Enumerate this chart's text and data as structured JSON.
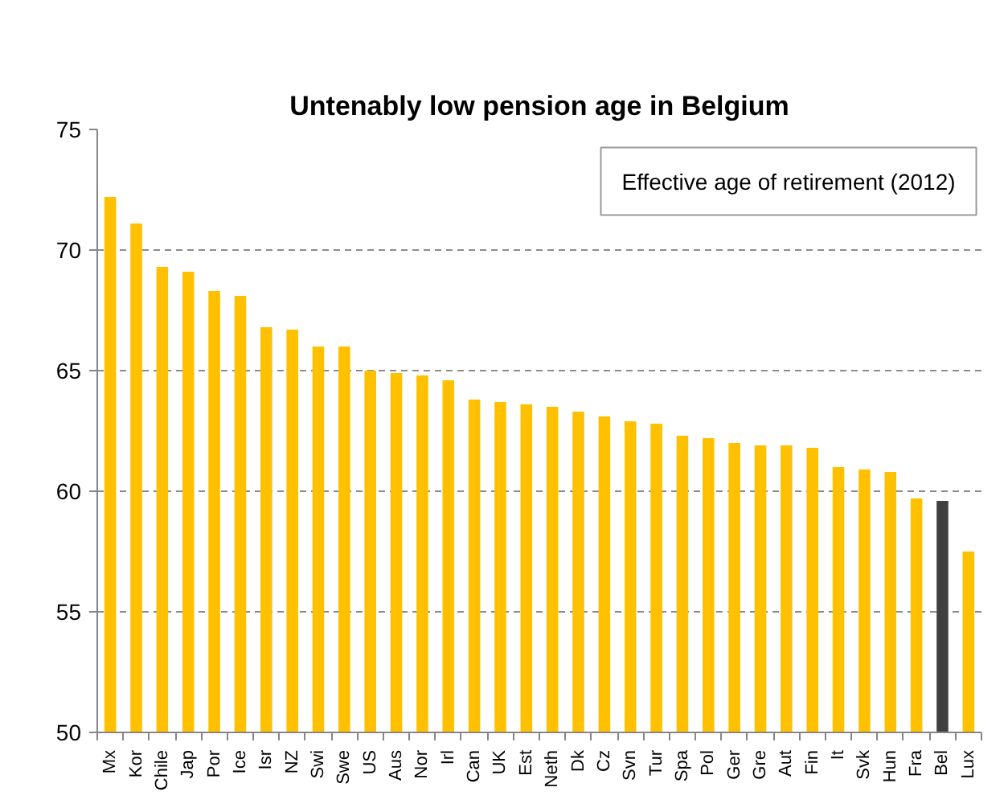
{
  "chart_data": {
    "type": "bar",
    "title": "Untenably low pension age in Belgium",
    "categories": [
      "Mx",
      "Kor",
      "Chile",
      "Jap",
      "Por",
      "Ice",
      "Isr",
      "NZ",
      "Swi",
      "Swe",
      "US",
      "Aus",
      "Nor",
      "Irl",
      "Can",
      "UK",
      "Est",
      "Neth",
      "Dk",
      "Cz",
      "Svn",
      "Tur",
      "Spa",
      "Pol",
      "Ger",
      "Gre",
      "Aut",
      "Fin",
      "It",
      "Svk",
      "Hun",
      "Fra",
      "Bel",
      "Lux"
    ],
    "values": [
      72.2,
      71.1,
      69.3,
      69.1,
      68.3,
      68.1,
      66.8,
      66.7,
      66.0,
      66.0,
      65.0,
      64.9,
      64.8,
      64.6,
      63.8,
      63.7,
      63.6,
      63.5,
      63.3,
      63.1,
      62.9,
      62.8,
      62.3,
      62.2,
      62.0,
      61.9,
      61.9,
      61.8,
      61.0,
      60.9,
      60.8,
      59.7,
      59.6,
      57.5
    ],
    "colors": [
      "#ffc000",
      "#ffc000",
      "#ffc000",
      "#ffc000",
      "#ffc000",
      "#ffc000",
      "#ffc000",
      "#ffc000",
      "#ffc000",
      "#ffc000",
      "#ffc000",
      "#ffc000",
      "#ffc000",
      "#ffc000",
      "#ffc000",
      "#ffc000",
      "#ffc000",
      "#ffc000",
      "#ffc000",
      "#ffc000",
      "#ffc000",
      "#ffc000",
      "#ffc000",
      "#ffc000",
      "#ffc000",
      "#ffc000",
      "#ffc000",
      "#ffc000",
      "#ffc000",
      "#ffc000",
      "#ffc000",
      "#ffc000",
      "#404040",
      "#ffc000"
    ],
    "ylim": [
      50,
      75
    ],
    "yticks": [
      50,
      55,
      60,
      65,
      70,
      75
    ],
    "grid": "y",
    "annotations": [
      "Effective age of retirement (2012)"
    ]
  }
}
